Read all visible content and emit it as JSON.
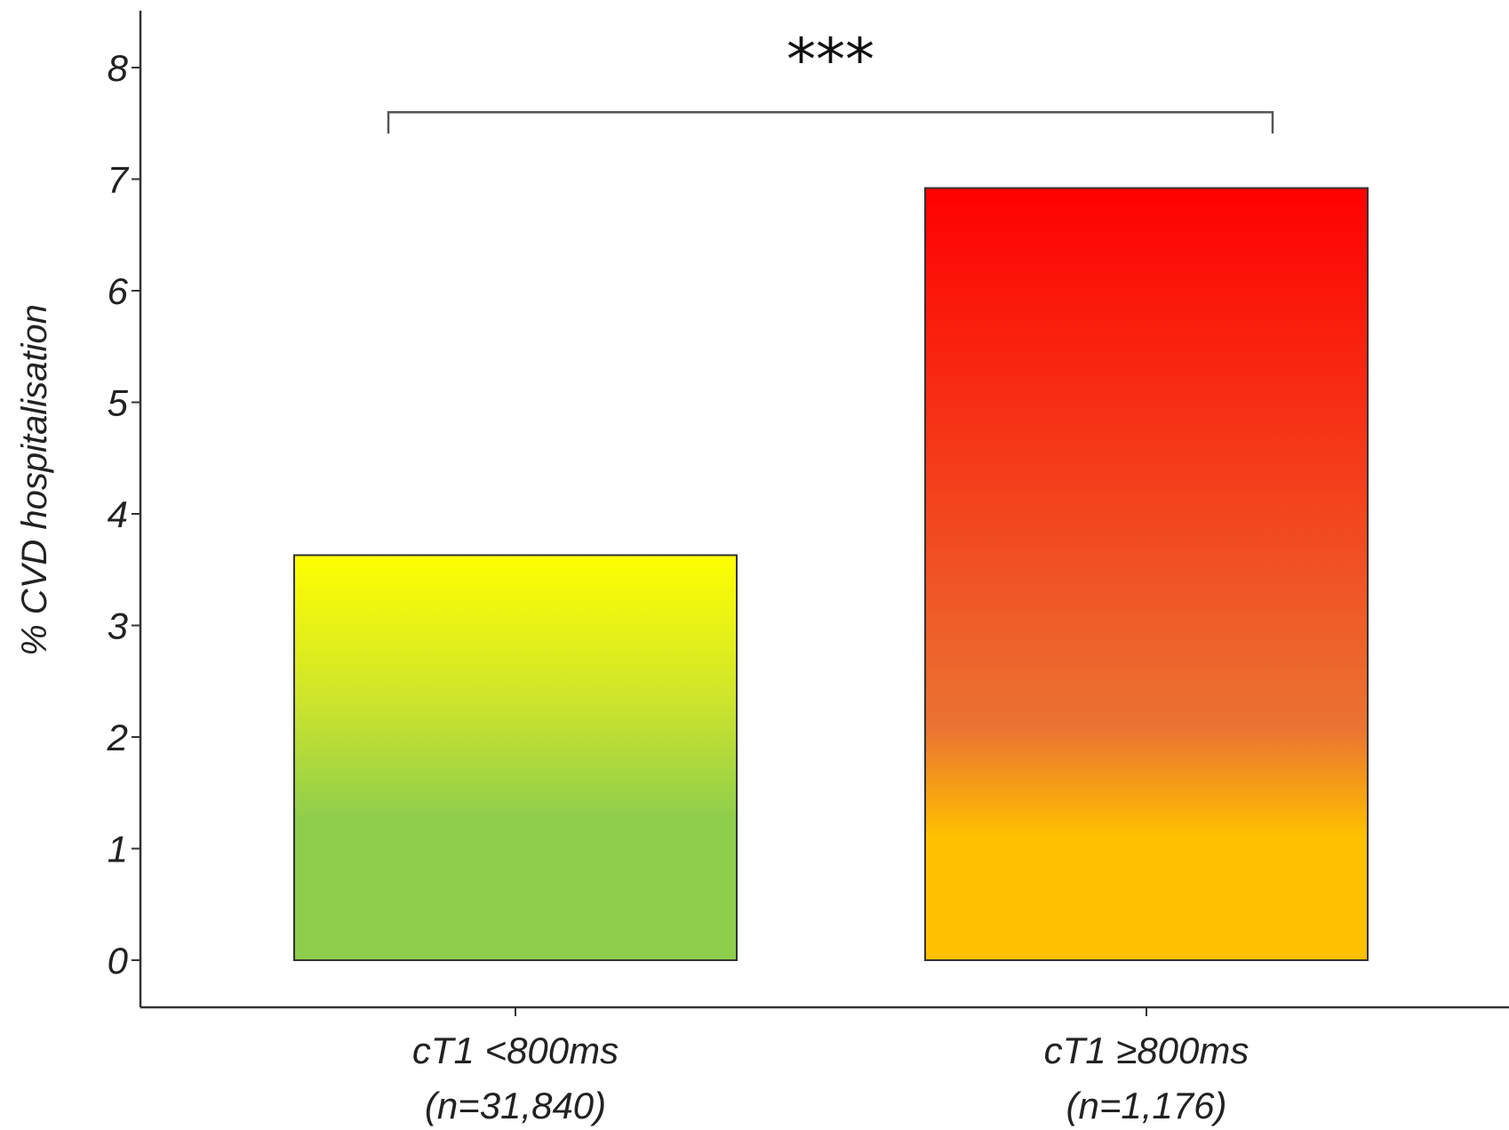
{
  "chart_data": {
    "type": "bar",
    "title": "",
    "xlabel": "",
    "ylabel": "% CVD hospitalisation",
    "ylim": [
      0,
      8
    ],
    "yticks": [
      0,
      1,
      2,
      3,
      4,
      5,
      6,
      7,
      8
    ],
    "grid": false,
    "legend": "none",
    "categories": [
      {
        "line1": "cT1 <800ms",
        "line2": "(n=31,840)"
      },
      {
        "line1": "cT1 ≥800ms",
        "line2": "(n=1,176)"
      }
    ],
    "values": [
      3.63,
      6.92
    ],
    "bar_gradients": [
      {
        "bottom": "#8fce4c",
        "middle": "#cfe52b",
        "top": "#ffff00"
      },
      {
        "bottom": "#ffc000",
        "middle": "#ea7432",
        "top": "#ff0000"
      }
    ],
    "significance": {
      "label": "***",
      "between": [
        0,
        1
      ],
      "bracket_y": 7.6
    }
  }
}
